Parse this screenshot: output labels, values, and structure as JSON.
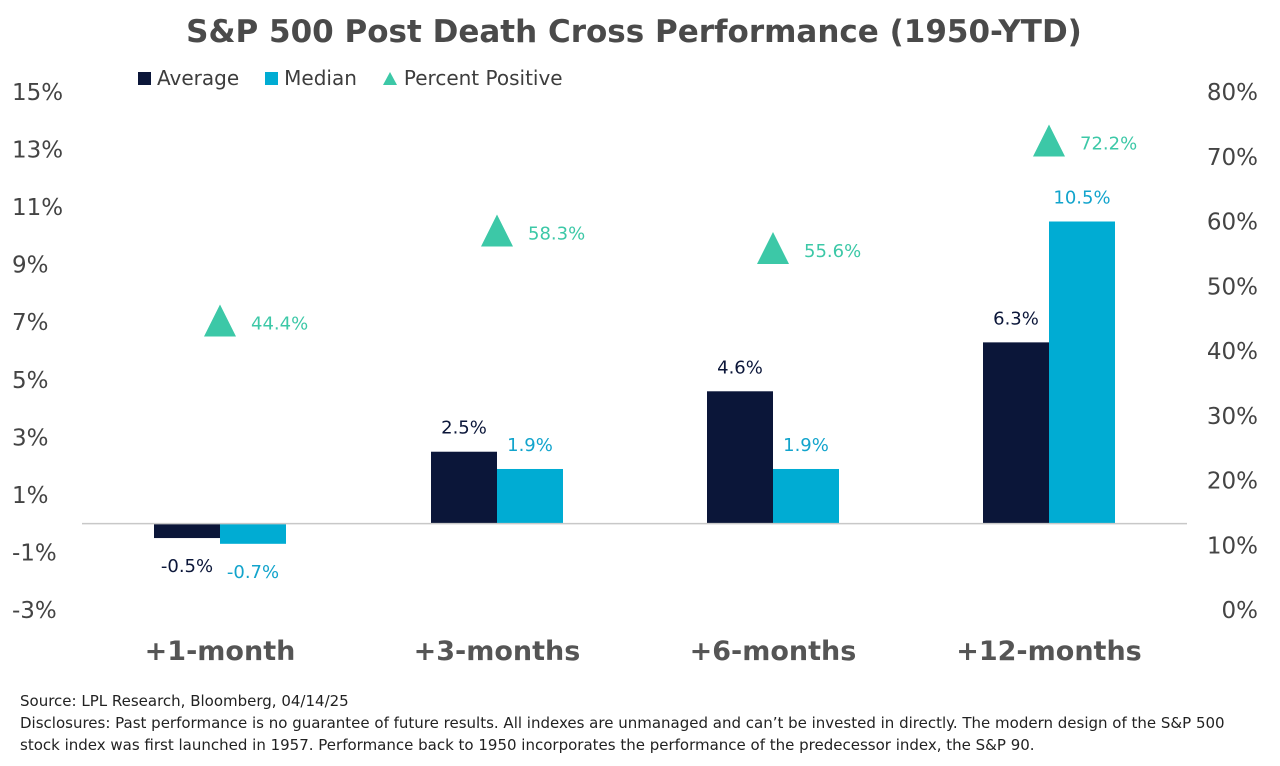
{
  "title": "S&P 500 Post Death Cross Performance (1950-YTD)",
  "legend": {
    "average": "Average",
    "median": "Median",
    "percent_positive": "Percent Positive"
  },
  "colors": {
    "average": "#0b1639",
    "median": "#00acd3",
    "percent_positive": "#3cc8a7",
    "median_label": "#12a4cc",
    "title": "#4a4a4a",
    "axis_text": "#444444"
  },
  "chart_data": {
    "type": "bar",
    "title": "S&P 500 Post Death Cross Performance (1950-YTD)",
    "categories": [
      "+1-month",
      "+3-months",
      "+6-months",
      "+12-months"
    ],
    "series": [
      {
        "name": "Average",
        "axis": "left",
        "values": [
          -0.5,
          2.5,
          4.6,
          6.3
        ],
        "labels": [
          "-0.5%",
          "2.5%",
          "4.6%",
          "6.3%"
        ]
      },
      {
        "name": "Median",
        "axis": "left",
        "values": [
          -0.7,
          1.9,
          1.9,
          10.5
        ],
        "labels": [
          "-0.7%",
          "1.9%",
          "1.9%",
          "10.5%"
        ]
      },
      {
        "name": "Percent Positive",
        "axis": "right",
        "marker": "triangle",
        "values": [
          44.4,
          58.3,
          55.6,
          72.2
        ],
        "labels": [
          "44.4%",
          "58.3%",
          "55.6%",
          "72.2%"
        ]
      }
    ],
    "y_left": {
      "ylim": [
        -3,
        15
      ],
      "ticks": [
        15,
        13,
        11,
        9,
        7,
        5,
        3,
        1,
        -1,
        -3
      ],
      "tick_labels": [
        "15%",
        "13%",
        "11%",
        "9%",
        "7%",
        "5%",
        "3%",
        "1%",
        "-1%",
        "-3%"
      ]
    },
    "y_right": {
      "ylim": [
        0,
        80
      ],
      "ticks": [
        80,
        70,
        60,
        50,
        40,
        30,
        20,
        10,
        0
      ],
      "tick_labels": [
        "80%",
        "70%",
        "60%",
        "50%",
        "40%",
        "30%",
        "20%",
        "10%",
        "0%"
      ]
    },
    "grid": false,
    "legend_position": "top-left"
  },
  "footnotes": {
    "source": "Source: LPL Research, Bloomberg, 04/14/25",
    "disclosures": "Disclosures: Past performance is no guarantee of future results. All indexes are unmanaged and can’t be invested in directly. The modern design of the S&P 500 stock index was first launched in 1957. Performance back to 1950 incorporates the performance of the predecessor index, the S&P 90."
  }
}
